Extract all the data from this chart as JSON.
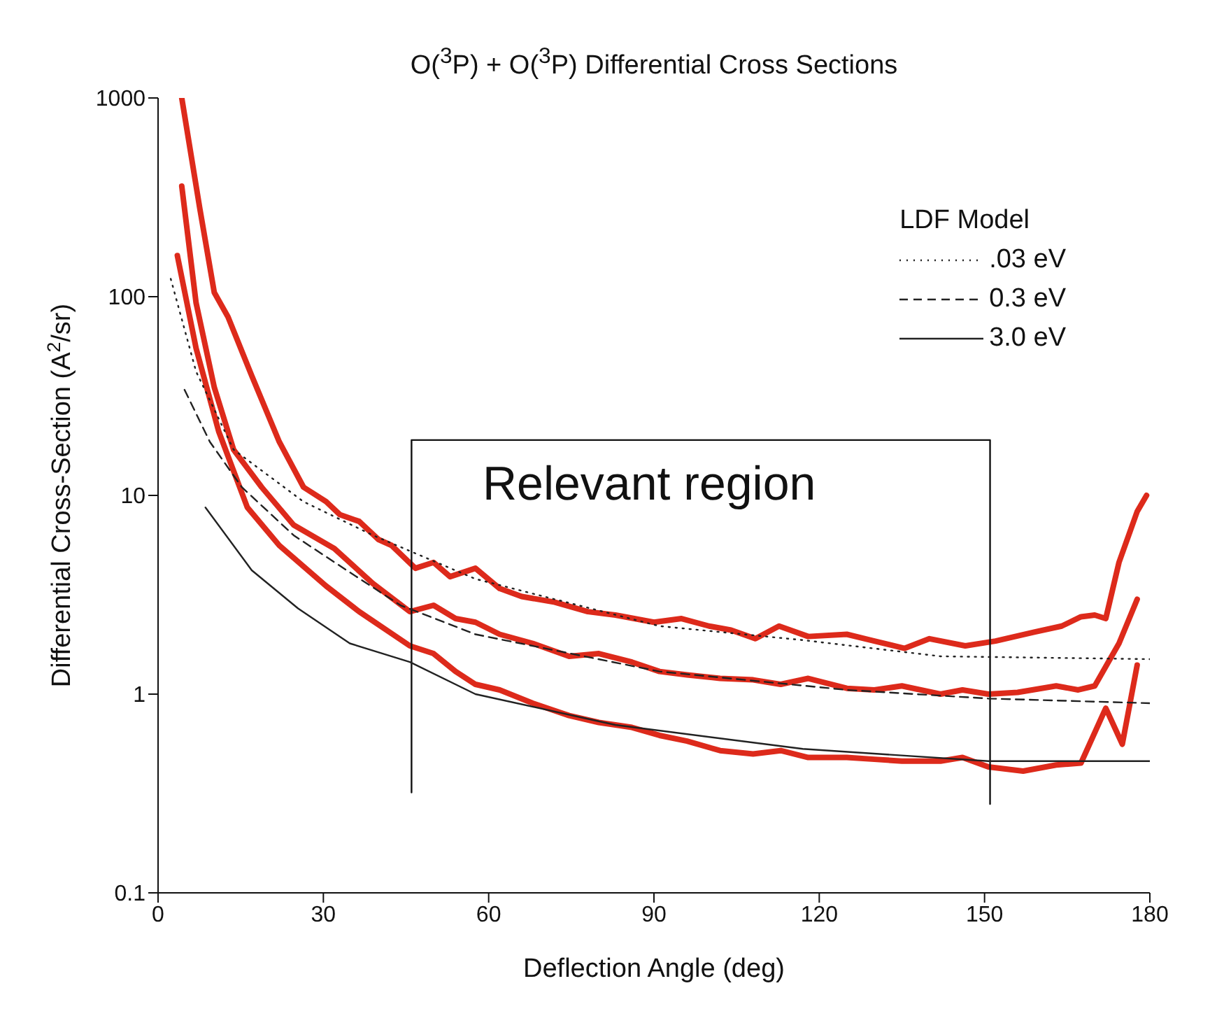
{
  "chart_data": {
    "type": "line",
    "title": "O($^{3}$P) + O($^{3}$P) Differential Cross Sections",
    "xlabel": "Deflection Angle (deg)",
    "ylabel": "Differential Cross-Section (A$^{2}$/sr)",
    "legend_title": "LDF Model",
    "legend": "top right",
    "log": "y",
    "grid": false,
    "marker": "none",
    "xlim": [
      0,
      180
    ],
    "xticks": [
      0,
      30,
      60,
      90,
      120,
      150,
      180
    ],
    "ylim": [
      0.1,
      1000
    ],
    "yticks": [
      0.1,
      1,
      10,
      100,
      1000
    ],
    "annotations": [
      "Relevant region"
    ],
    "series": [
      {
        "color": "#dd2a1b",
        "line_style": "solid",
        "x": [
          4.3,
          7.6,
          10.2,
          12.7,
          17,
          22,
          26.4,
          30.5,
          33,
          36.5,
          40,
          42.4,
          46.7,
          50,
          53,
          57.6,
          62,
          66,
          72,
          78,
          83,
          90,
          95,
          100,
          104,
          108.4,
          112.7,
          118,
          125,
          130,
          135.5,
          140,
          146.5,
          152,
          159,
          164,
          167.5,
          170,
          172,
          174.4,
          177.7,
          179.4
        ],
        "values": [
          1000,
          275,
          105,
          79,
          40,
          18.6,
          11,
          9.3,
          8,
          7.4,
          6,
          5.6,
          4.3,
          4.6,
          3.9,
          4.3,
          3.4,
          3.1,
          2.9,
          2.6,
          2.5,
          2.3,
          2.4,
          2.2,
          2.1,
          1.9,
          2.2,
          1.95,
          2.0,
          1.85,
          1.7,
          1.9,
          1.75,
          1.85,
          2.05,
          2.2,
          2.45,
          2.5,
          2.4,
          4.6,
          8.3,
          10
        ]
      },
      {
        "color": "#dd2a1b",
        "line_style": "solid",
        "x": [
          4.3,
          6.9,
          10.2,
          13.7,
          18.8,
          24.6,
          32,
          39,
          45.7,
          50,
          54,
          57.6,
          62,
          68,
          74.6,
          80,
          86,
          91,
          96,
          102,
          108,
          113,
          118,
          125,
          130,
          135,
          142,
          146,
          150.7,
          156,
          163,
          167,
          170,
          174.4,
          177.7
        ],
        "values": [
          360,
          93,
          35,
          17,
          11,
          7.1,
          5.4,
          3.6,
          2.6,
          2.8,
          2.4,
          2.3,
          2.0,
          1.8,
          1.55,
          1.6,
          1.45,
          1.3,
          1.25,
          1.2,
          1.18,
          1.12,
          1.2,
          1.07,
          1.05,
          1.1,
          1.0,
          1.05,
          1.0,
          1.02,
          1.1,
          1.05,
          1.1,
          1.8,
          3.0
        ]
      },
      {
        "color": "#dd2a1b",
        "line_style": "solid",
        "x": [
          3.5,
          6.9,
          11,
          16.2,
          22,
          30.5,
          36.5,
          45.7,
          50,
          54,
          57.6,
          62,
          68,
          74.6,
          80,
          86,
          91,
          96,
          102,
          108,
          113,
          118,
          125,
          130,
          135,
          142,
          146,
          150.7,
          157,
          163,
          167.5,
          172,
          175,
          177.7
        ],
        "values": [
          161,
          55,
          21,
          8.7,
          5.6,
          3.5,
          2.6,
          1.75,
          1.6,
          1.3,
          1.12,
          1.05,
          0.9,
          0.78,
          0.72,
          0.68,
          0.62,
          0.58,
          0.52,
          0.5,
          0.52,
          0.48,
          0.48,
          0.47,
          0.46,
          0.46,
          0.48,
          0.43,
          0.41,
          0.44,
          0.45,
          0.85,
          0.56,
          1.4
        ]
      },
      {
        "color": "#111111",
        "line_style": "solid",
        "x": [
          46,
          46,
          151,
          151
        ],
        "values": [
          0.32,
          19,
          19,
          0.28
        ]
      },
      {
        "name": ".03 eV",
        "color": "#222222",
        "line_style": "dotted",
        "x": [
          2.3,
          6.9,
          13.7,
          26.4,
          39,
          57.6,
          91,
          117,
          142,
          180
        ],
        "values": [
          123,
          42,
          17,
          9.3,
          6.3,
          3.8,
          2.2,
          1.87,
          1.55,
          1.5
        ]
      },
      {
        "name": "0.3 eV",
        "color": "#222222",
        "line_style": "dashed",
        "x": [
          4.8,
          9.4,
          15.2,
          24.6,
          34.8,
          44,
          57.6,
          91,
          125,
          150.7,
          180
        ],
        "values": [
          34,
          18.6,
          11,
          6.3,
          4.1,
          2.8,
          2.0,
          1.3,
          1.05,
          0.95,
          0.9
        ]
      },
      {
        "name": "3.0 eV",
        "color": "#222222",
        "line_style": "solid",
        "x": [
          8.6,
          17,
          25.4,
          34.8,
          45.7,
          57.6,
          83,
          117,
          150.7,
          180
        ],
        "values": [
          8.7,
          4.2,
          2.7,
          1.8,
          1.45,
          1.0,
          0.7,
          0.53,
          0.46,
          0.46
        ]
      }
    ]
  }
}
